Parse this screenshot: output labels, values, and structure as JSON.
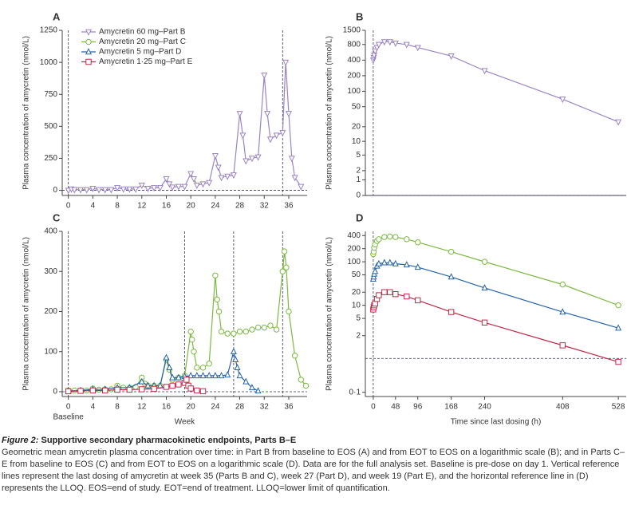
{
  "chart_data": [
    {
      "type": "line",
      "panel_label": "A",
      "ylabel": "Plasma concentration of amycretin (nmol/L)",
      "xlim": [
        -1,
        39
      ],
      "xticks": [
        0,
        4,
        8,
        12,
        16,
        20,
        24,
        28,
        32,
        36
      ],
      "ylim": [
        -40,
        1250
      ],
      "yticks": [
        0,
        250,
        500,
        750,
        1000,
        1250
      ],
      "yscale": "linear",
      "vlines": [
        0,
        35
      ],
      "hlines": [
        0
      ],
      "legend": "upper left",
      "series": [
        {
          "name": "Amycretin 60 mg–Part B",
          "color": "#9b84c2",
          "marker": "triangle-down",
          "x": [
            0,
            0.5,
            1,
            2,
            3,
            4,
            5,
            6,
            7,
            8,
            9,
            10,
            11,
            12,
            13,
            14,
            15,
            16,
            16.5,
            17,
            18,
            19,
            20,
            20.5,
            21,
            22,
            23,
            24,
            24.5,
            25,
            26,
            27,
            28,
            28.5,
            29,
            30,
            31,
            32,
            32.5,
            33,
            34,
            35,
            35.5,
            36,
            36.5,
            37,
            38
          ],
          "values": [
            0,
            10,
            5,
            5,
            5,
            15,
            5,
            5,
            5,
            20,
            10,
            10,
            10,
            40,
            15,
            20,
            20,
            90,
            50,
            25,
            30,
            30,
            130,
            90,
            40,
            50,
            60,
            270,
            180,
            100,
            110,
            120,
            600,
            430,
            230,
            250,
            260,
            900,
            600,
            400,
            430,
            450,
            1000,
            600,
            250,
            100,
            30
          ]
        },
        {
          "name": "Amycretin 20 mg–Part C",
          "color": "#7cb93f",
          "marker": "circle",
          "x": [],
          "values": []
        },
        {
          "name": "Amycretin 5 mg–Part D",
          "color": "#2563a8",
          "marker": "triangle-up",
          "x": [],
          "values": []
        },
        {
          "name": "Amycretin 1·25 mg–Part E",
          "color": "#c0294a",
          "marker": "square",
          "x": [],
          "values": []
        }
      ]
    },
    {
      "type": "line",
      "panel_label": "B",
      "ylabel": "Plasma concentration of amycretin (nmol/L)",
      "xlim": [
        -17,
        545
      ],
      "ylim": [
        0,
        1500
      ],
      "yticks": [
        0,
        1,
        2,
        5,
        10,
        20,
        50,
        100,
        200,
        400,
        800,
        1500
      ],
      "yscale": "log1p",
      "vlines": [
        0
      ],
      "hlines": [
        0
      ],
      "series": [
        {
          "color": "#9b84c2",
          "marker": "triangle-down",
          "x": [
            0,
            1,
            2,
            4,
            8,
            12,
            24,
            36,
            48,
            72,
            96,
            168,
            240,
            408,
            528
          ],
          "values": [
            400,
            450,
            500,
            600,
            700,
            800,
            900,
            900,
            850,
            800,
            700,
            480,
            250,
            70,
            25
          ]
        }
      ]
    },
    {
      "type": "line",
      "panel_label": "C",
      "ylabel": "Plasma concentration of amycretin (nmol/L)",
      "xlabel": "Week",
      "baseline_label": "Baseline",
      "xlim": [
        -1,
        39
      ],
      "xticks": [
        0,
        4,
        8,
        12,
        16,
        20,
        24,
        28,
        32,
        36
      ],
      "ylim": [
        -12,
        400
      ],
      "yticks": [
        0,
        100,
        200,
        300,
        400
      ],
      "yscale": "linear",
      "vlines": [
        0,
        19,
        27,
        35
      ],
      "hlines": [
        0
      ],
      "series": [
        {
          "color": "#7cb93f",
          "marker": "circle",
          "x": [
            0,
            1,
            2,
            3,
            4,
            5,
            6,
            7,
            8,
            9,
            10,
            11,
            12,
            12.5,
            13,
            14,
            15,
            16,
            16.5,
            17,
            18,
            19,
            20,
            20.2,
            20.5,
            21,
            22,
            23,
            24,
            24.3,
            24.6,
            25,
            26,
            27,
            28,
            29,
            30,
            31,
            32,
            33,
            34,
            35,
            35.3,
            35.6,
            36,
            37,
            38,
            38.8
          ],
          "values": [
            3,
            3,
            3,
            3,
            8,
            5,
            6,
            6,
            15,
            10,
            10,
            12,
            35,
            20,
            15,
            15,
            15,
            80,
            55,
            30,
            35,
            40,
            150,
            130,
            100,
            60,
            60,
            70,
            290,
            230,
            200,
            150,
            145,
            145,
            150,
            150,
            155,
            160,
            160,
            165,
            155,
            300,
            350,
            310,
            200,
            90,
            30,
            15
          ]
        },
        {
          "color": "#2563a8",
          "marker": "triangle-up",
          "x": [
            0,
            2,
            4,
            6,
            8,
            10,
            12,
            13,
            14,
            15,
            16,
            16.5,
            17,
            18,
            19,
            20,
            21,
            22,
            23,
            24,
            25,
            26,
            27,
            27.3,
            27.6,
            28,
            29,
            30,
            31
          ],
          "values": [
            2,
            3,
            6,
            6,
            10,
            10,
            25,
            15,
            15,
            15,
            85,
            60,
            35,
            35,
            38,
            40,
            40,
            40,
            40,
            40,
            40,
            42,
            100,
            80,
            60,
            40,
            25,
            10,
            2
          ]
        },
        {
          "color": "#c0294a",
          "marker": "square",
          "x": [
            0,
            2,
            4,
            6,
            8,
            10,
            12,
            14,
            16,
            17,
            18,
            19,
            19.3,
            19.6,
            20,
            21,
            22
          ],
          "values": [
            1,
            2,
            3,
            3,
            5,
            5,
            6,
            7,
            12,
            15,
            18,
            22,
            30,
            15,
            8,
            3,
            1
          ]
        }
      ]
    },
    {
      "type": "line",
      "panel_label": "D",
      "ylabel": "Plasma concentration of amycretin (nmol/L)",
      "xlabel": "Time since last dosing (h)",
      "xlim": [
        -17,
        545
      ],
      "xticks": [
        0,
        48,
        96,
        168,
        240,
        408,
        528
      ],
      "ylim": [
        0.08,
        500
      ],
      "yticks": [
        {
          "value": 0.1,
          "label": "0·1"
        },
        2,
        5,
        10,
        20,
        50,
        100,
        200,
        400
      ],
      "yscale": "log",
      "vlines": [
        0
      ],
      "hlines": [
        0.6
      ],
      "series": [
        {
          "color": "#7cb93f",
          "marker": "circle",
          "x": [
            0,
            1,
            2,
            4,
            8,
            12,
            24,
            36,
            48,
            72,
            96,
            168,
            240,
            408,
            528
          ],
          "values": [
            150,
            170,
            210,
            250,
            300,
            330,
            370,
            380,
            370,
            330,
            280,
            170,
            100,
            30,
            10
          ]
        },
        {
          "color": "#2563a8",
          "marker": "triangle-up",
          "x": [
            0,
            1,
            2,
            4,
            8,
            12,
            24,
            36,
            48,
            72,
            96,
            168,
            240,
            408,
            528
          ],
          "values": [
            40,
            45,
            52,
            60,
            80,
            90,
            95,
            95,
            90,
            85,
            75,
            45,
            25,
            7,
            3
          ]
        },
        {
          "color": "#c0294a",
          "marker": "square",
          "x": [
            0,
            1,
            2,
            4,
            8,
            12,
            24,
            36,
            48,
            72,
            96,
            168,
            240,
            408,
            528
          ],
          "values": [
            8,
            9,
            10,
            11,
            14,
            17,
            20,
            20,
            18,
            16,
            13,
            7,
            4,
            1.2,
            0.5
          ]
        }
      ]
    }
  ],
  "caption": {
    "label": "Figure 2:",
    "title": "Supportive secondary pharmacokinetic endpoints, Parts B–E",
    "text": "Geometric mean amycretin plasma concentration over time: in Part B from baseline to EOS (A) and from EOT to EOS on a logarithmic scale (B); and in Parts C–E from baseline to EOS (C) and from EOT to EOS on a logarithmic scale (D). Data are for the full analysis set. Baseline is pre-dose on day 1. Vertical reference lines represent the last dosing of amycretin at week 35 (Parts B and C), week 27 (Part D), and week 19 (Part E), and the horizontal reference line in (D) represents the LLOQ. EOS=end of study. EOT=end of treatment. LLOQ=lower limit of quantification."
  }
}
